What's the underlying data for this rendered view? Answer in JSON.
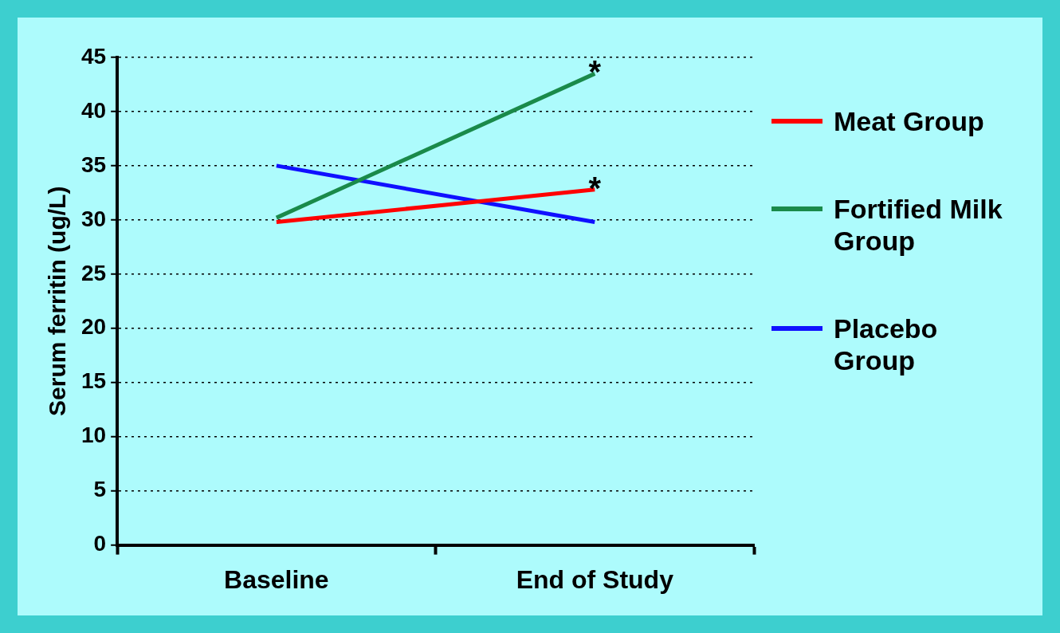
{
  "chart_data": {
    "type": "line",
    "ylabel": "Serum ferritin (ug/L)",
    "categories": [
      "Baseline",
      "End of Study"
    ],
    "series": [
      {
        "name": "Meat Group",
        "color": "#ff0000",
        "values": [
          29.8,
          32.8
        ]
      },
      {
        "name": "Fortified Milk Group",
        "color": "#1a8a4a",
        "values": [
          30.2,
          43.5
        ]
      },
      {
        "name": "Placebo Group",
        "color": "#1010ff",
        "values": [
          35.0,
          29.8
        ]
      }
    ],
    "ylim": [
      0,
      45
    ],
    "yticks": [
      0,
      5,
      10,
      15,
      20,
      25,
      30,
      35,
      40,
      45
    ],
    "grid": "y",
    "legend": "right",
    "marker": "none",
    "line_style": "solid",
    "annotations": [
      {
        "text": "*",
        "x": "End of Study",
        "y": 43.5
      },
      {
        "text": "*",
        "x": "End of Study",
        "y": 32.8
      }
    ]
  }
}
